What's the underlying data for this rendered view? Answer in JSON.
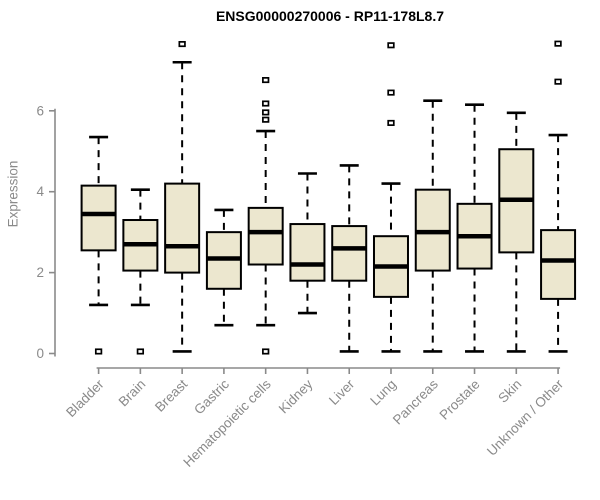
{
  "chart_data": {
    "type": "boxplot",
    "title": "ENSG00000270006 - RP11-178L8.7",
    "xlabel": "",
    "ylabel": "Expression",
    "yticks": [
      0,
      2,
      4,
      6
    ],
    "ylim": [
      0,
      7.8
    ],
    "grid": false,
    "legend": "none",
    "categories": [
      "Bladder",
      "Brain",
      "Breast",
      "Gastric",
      "Hematopoietic cells",
      "Kidney",
      "Liver",
      "Lung",
      "Pancreas",
      "Prostate",
      "Skin",
      "Unknown / Other"
    ],
    "series": [
      {
        "name": "Expression",
        "boxes": [
          {
            "category": "Bladder",
            "whisker_low": 1.2,
            "q1": 2.55,
            "median": 3.45,
            "q3": 4.15,
            "whisker_high": 5.35,
            "outliers": [
              0.05
            ]
          },
          {
            "category": "Brain",
            "whisker_low": 1.2,
            "q1": 2.05,
            "median": 2.7,
            "q3": 3.3,
            "whisker_high": 4.05,
            "outliers": [
              0.05
            ]
          },
          {
            "category": "Breast",
            "whisker_low": 0.05,
            "q1": 2.0,
            "median": 2.65,
            "q3": 4.2,
            "whisker_high": 7.2,
            "outliers": [
              7.65
            ]
          },
          {
            "category": "Gastric",
            "whisker_low": 0.7,
            "q1": 1.6,
            "median": 2.35,
            "q3": 3.0,
            "whisker_high": 3.55,
            "outliers": []
          },
          {
            "category": "Hematopoietic cells",
            "whisker_low": 0.7,
            "q1": 2.2,
            "median": 3.0,
            "q3": 3.6,
            "whisker_high": 5.5,
            "outliers": [
              0.05,
              5.78,
              5.96,
              6.18,
              6.76
            ]
          },
          {
            "category": "Kidney",
            "whisker_low": 1.0,
            "q1": 1.8,
            "median": 2.2,
            "q3": 3.2,
            "whisker_high": 4.45,
            "outliers": []
          },
          {
            "category": "Liver",
            "whisker_low": 0.05,
            "q1": 1.8,
            "median": 2.6,
            "q3": 3.15,
            "whisker_high": 4.65,
            "outliers": []
          },
          {
            "category": "Lung",
            "whisker_low": 0.05,
            "q1": 1.4,
            "median": 2.15,
            "q3": 2.9,
            "whisker_high": 4.2,
            "outliers": [
              5.7,
              6.45,
              7.62
            ]
          },
          {
            "category": "Pancreas",
            "whisker_low": 0.05,
            "q1": 2.05,
            "median": 3.0,
            "q3": 4.05,
            "whisker_high": 6.25,
            "outliers": []
          },
          {
            "category": "Prostate",
            "whisker_low": 0.05,
            "q1": 2.1,
            "median": 2.9,
            "q3": 3.7,
            "whisker_high": 6.15,
            "outliers": []
          },
          {
            "category": "Skin",
            "whisker_low": 0.05,
            "q1": 2.5,
            "median": 3.8,
            "q3": 5.05,
            "whisker_high": 5.95,
            "outliers": []
          },
          {
            "category": "Unknown / Other",
            "whisker_low": 0.05,
            "q1": 1.35,
            "median": 2.3,
            "q3": 3.05,
            "whisker_high": 5.4,
            "outliers": [
              6.72,
              7.66
            ]
          }
        ]
      }
    ],
    "colors": {
      "background": "#ffffff",
      "box_fill": "#ECE7CF",
      "box_stroke": "#000000",
      "median": "#000000",
      "whisker": "#000000",
      "outlier_fill": "#ffffff",
      "axis": "#8a8a8a",
      "tick_label": "#8a8a8a",
      "title": "#000000"
    }
  }
}
